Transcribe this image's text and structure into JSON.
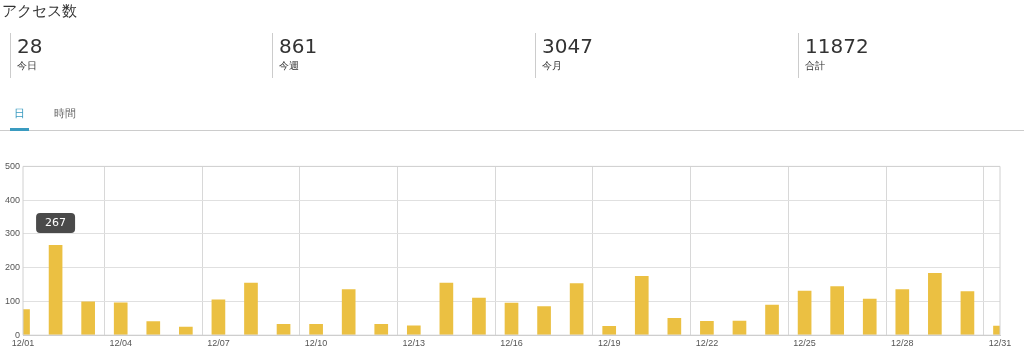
{
  "chart_data": [
    {
      "type": "other",
      "title": "アクセス数",
      "annotations": [
        "28",
        "今日",
        "861",
        "今週",
        "3047",
        "今月",
        "11872",
        "合計",
        "日",
        "時間"
      ]
    },
    {
      "type": "bar",
      "categories": [
        "12/01",
        null,
        null,
        "12/04",
        null,
        null,
        "12/07",
        null,
        null,
        "12/10",
        null,
        null,
        "12/13",
        null,
        null,
        "12/16",
        null,
        null,
        "12/19",
        null,
        null,
        "12/22",
        null,
        null,
        "12/25",
        null,
        null,
        "12/28",
        null,
        null,
        "12/31"
      ],
      "values": [
        77,
        267,
        100,
        97,
        41,
        25,
        106,
        155,
        33,
        33,
        136,
        33,
        29,
        155,
        111,
        96,
        86,
        154,
        27,
        175,
        51,
        42,
        43,
        90,
        132,
        145,
        108,
        136,
        184,
        130,
        28
      ],
      "color": "#ebc042",
      "ylim": [
        0,
        500
      ],
      "yticks": [
        0,
        100,
        200,
        300,
        400,
        500
      ],
      "grid": true,
      "legend": false,
      "annotations": [
        {
          "text": "267",
          "y": 267
        }
      ]
    }
  ]
}
